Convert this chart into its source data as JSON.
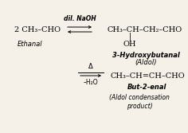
{
  "background_color": "#f5f0e8",
  "fig_width": 2.36,
  "fig_height": 1.67,
  "dpi": 100,
  "elements": {
    "reactant": "2 CH₃–CHO",
    "reactant_label": "Ethanal",
    "arrow1_label_top": "dil. NaOH",
    "product1": "CH₃–CH–CH₂–CHO",
    "product1_sub": "|",
    "product1_sub2": "OH",
    "product1_name": "3-Hydroxybutanal",
    "product1_alias": "(Aldol)",
    "arrow2_label_top": "Δ",
    "arrow2_label_bot": "–H₂O",
    "product2": "CH₃–CH=CH–CHO",
    "product2_name": "But-2-enal",
    "product2_alias_line1": "(Aldol condensation",
    "product2_alias_line2": "product)"
  }
}
